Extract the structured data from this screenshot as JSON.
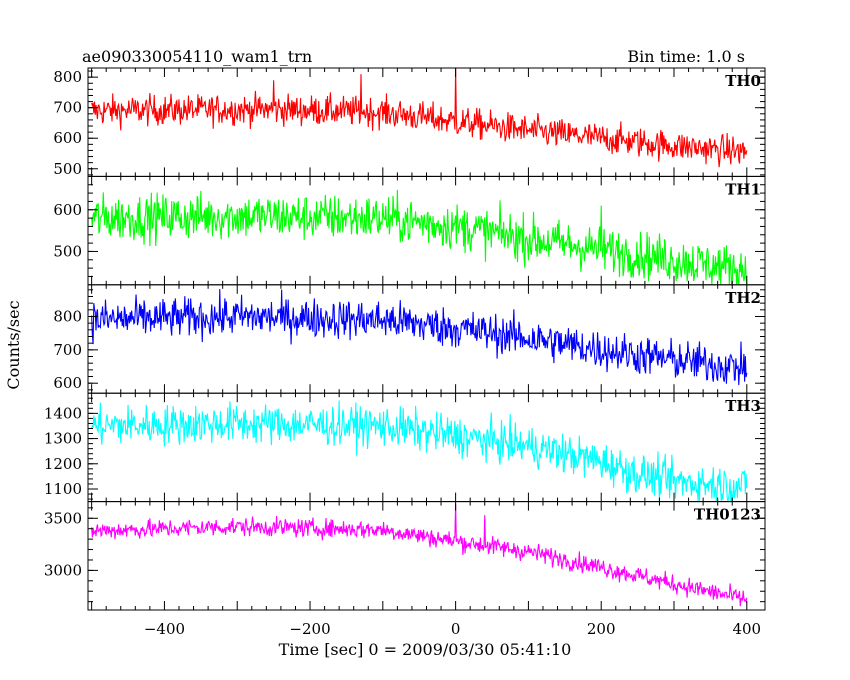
{
  "header": {
    "title": "ae090330054110_wam1_trn",
    "bin_time": "Bin time: 1.0 s"
  },
  "chart_data": {
    "type": "line",
    "title": "ae090330054110_wam1_trn",
    "subtitle": "Bin time: 1.0 s",
    "xlabel": "Time [sec] 0 = 2009/03/30 05:41:10",
    "ylabel": "Counts/sec",
    "xlim": [
      -505,
      425
    ],
    "x_ticks": [
      -400,
      -200,
      0,
      200,
      400
    ],
    "x_tick_labels": [
      "−400",
      "−200",
      "0",
      "200",
      "400"
    ],
    "x_start": -500,
    "x_end": 400,
    "x_step": 1,
    "grid": false,
    "panels": [
      {
        "name": "TH0",
        "color": "#ff0000",
        "ylim": [
          475,
          830
        ],
        "y_ticks": [
          500,
          600,
          700,
          800
        ],
        "y_tick_labels": [
          "500",
          "600",
          "700",
          "800"
        ],
        "trend": [
          [
            -500,
            690
          ],
          [
            -250,
            695
          ],
          [
            -100,
            685
          ],
          [
            0,
            655
          ],
          [
            100,
            625
          ],
          [
            200,
            600
          ],
          [
            300,
            575
          ],
          [
            400,
            555
          ]
        ],
        "noise": 25,
        "spikes": [
          [
            0,
            830
          ],
          [
            -130,
            810
          ],
          [
            -250,
            790
          ]
        ]
      },
      {
        "name": "TH1",
        "color": "#00ff00",
        "ylim": [
          420,
          680
        ],
        "y_ticks": [
          500,
          600
        ],
        "y_tick_labels": [
          "500",
          "600"
        ],
        "trend": [
          [
            -500,
            580
          ],
          [
            -300,
            585
          ],
          [
            -100,
            580
          ],
          [
            0,
            560
          ],
          [
            100,
            530
          ],
          [
            200,
            505
          ],
          [
            300,
            480
          ],
          [
            400,
            455
          ]
        ],
        "noise": 28,
        "spikes": [
          [
            200,
            610
          ]
        ]
      },
      {
        "name": "TH2",
        "color": "#0000ff",
        "ylim": [
          570,
          895
        ],
        "y_ticks": [
          600,
          700,
          800
        ],
        "y_tick_labels": [
          "600",
          "700",
          "800"
        ],
        "trend": [
          [
            -500,
            790
          ],
          [
            -300,
            800
          ],
          [
            -100,
            790
          ],
          [
            0,
            765
          ],
          [
            100,
            735
          ],
          [
            200,
            700
          ],
          [
            300,
            670
          ],
          [
            400,
            645
          ]
        ],
        "noise": 30,
        "spikes": []
      },
      {
        "name": "TH3",
        "color": "#00ffff",
        "ylim": [
          1050,
          1480
        ],
        "y_ticks": [
          1100,
          1200,
          1300,
          1400
        ],
        "y_tick_labels": [
          "1100",
          "1200",
          "1300",
          "1400"
        ],
        "trend": [
          [
            -500,
            1350
          ],
          [
            -300,
            1360
          ],
          [
            -100,
            1350
          ],
          [
            0,
            1310
          ],
          [
            100,
            1270
          ],
          [
            200,
            1210
          ],
          [
            250,
            1160
          ],
          [
            300,
            1130
          ],
          [
            400,
            1110
          ]
        ],
        "noise": 40,
        "spikes": []
      },
      {
        "name": "TH0123",
        "color": "#ff00ff",
        "ylim": [
          2620,
          3660
        ],
        "y_ticks": [
          3000,
          3500
        ],
        "y_tick_labels": [
          "3000",
          "3500"
        ],
        "trend": [
          [
            -500,
            3380
          ],
          [
            -300,
            3420
          ],
          [
            -100,
            3390
          ],
          [
            0,
            3280
          ],
          [
            100,
            3180
          ],
          [
            200,
            3030
          ],
          [
            300,
            2870
          ],
          [
            400,
            2720
          ]
        ],
        "noise": 45,
        "spikes": [
          [
            0,
            3640
          ],
          [
            40,
            3530
          ]
        ]
      }
    ]
  }
}
